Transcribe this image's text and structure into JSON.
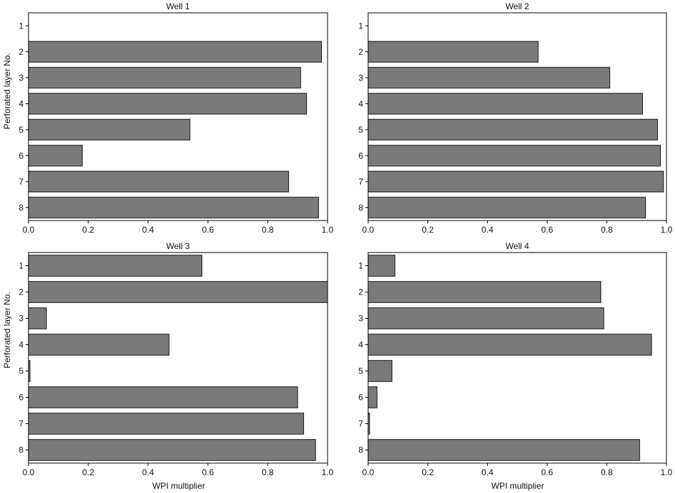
{
  "figure": {
    "ylabel": "Perforated layer No.",
    "xlabel": "WPI multiplier"
  },
  "colors": {
    "bar_fill": "#7a7a7a",
    "bar_stroke": "#1a1a1a",
    "axis": "#000000"
  },
  "chart_data": [
    {
      "type": "bar",
      "orientation": "horizontal",
      "title": "Well 1",
      "categories": [
        "1",
        "2",
        "3",
        "4",
        "5",
        "6",
        "7",
        "8"
      ],
      "values": [
        0.0,
        0.98,
        0.91,
        0.93,
        0.54,
        0.18,
        0.87,
        0.97
      ],
      "xlim": [
        0.0,
        1.0
      ],
      "xticks": [
        "0.0",
        "0.2",
        "0.4",
        "0.6",
        "0.8",
        "1.0"
      ],
      "grid": false
    },
    {
      "type": "bar",
      "orientation": "horizontal",
      "title": "Well 2",
      "categories": [
        "1",
        "2",
        "3",
        "4",
        "5",
        "6",
        "7",
        "8"
      ],
      "values": [
        0.0,
        0.57,
        0.81,
        0.92,
        0.97,
        0.98,
        0.99,
        0.93
      ],
      "xlim": [
        0.0,
        1.0
      ],
      "xticks": [
        "0.0",
        "0.2",
        "0.4",
        "0.6",
        "0.8",
        "1.0"
      ],
      "grid": false
    },
    {
      "type": "bar",
      "orientation": "horizontal",
      "title": "Well 3",
      "categories": [
        "1",
        "2",
        "3",
        "4",
        "5",
        "6",
        "7",
        "8"
      ],
      "values": [
        0.58,
        1.0,
        0.06,
        0.47,
        0.005,
        0.9,
        0.92,
        0.96
      ],
      "xlim": [
        0.0,
        1.0
      ],
      "xticks": [
        "0.0",
        "0.2",
        "0.4",
        "0.6",
        "0.8",
        "1.0"
      ],
      "grid": false
    },
    {
      "type": "bar",
      "orientation": "horizontal",
      "title": "Well 4",
      "categories": [
        "1",
        "2",
        "3",
        "4",
        "5",
        "6",
        "7",
        "8"
      ],
      "values": [
        0.09,
        0.78,
        0.79,
        0.95,
        0.08,
        0.03,
        0.005,
        0.91
      ],
      "xlim": [
        0.0,
        1.0
      ],
      "xticks": [
        "0.0",
        "0.2",
        "0.4",
        "0.6",
        "0.8",
        "1.0"
      ],
      "grid": false
    }
  ]
}
